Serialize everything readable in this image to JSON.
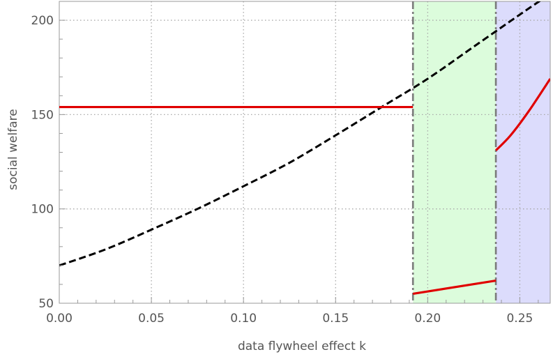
{
  "chart_data": {
    "type": "line",
    "title": "",
    "xlabel": "data flywheel effect k",
    "ylabel": "social welfare",
    "xlim": [
      0.0,
      0.2665
    ],
    "ylim": [
      50,
      210
    ],
    "x_ticks": [
      0.0,
      0.05,
      0.1,
      0.15,
      0.2,
      0.25
    ],
    "x_tick_labels": [
      "0.00",
      "0.05",
      "0.10",
      "0.15",
      "0.20",
      "0.25"
    ],
    "y_ticks": [
      50,
      100,
      150,
      200
    ],
    "y_tick_labels": [
      "50",
      "100",
      "150",
      "200"
    ],
    "grid": true,
    "regions": [
      {
        "from": 0.192,
        "to": 0.237,
        "color": "#dcfcdc"
      },
      {
        "from": 0.237,
        "to": 0.2665,
        "color": "#dcdcfc"
      }
    ],
    "region_boundaries": [
      0.192,
      0.237
    ],
    "series": [
      {
        "line_style": "dashed",
        "color": "#000000",
        "x": [
          0.0,
          0.025,
          0.05,
          0.075,
          0.1,
          0.125,
          0.15,
          0.175,
          0.2,
          0.225,
          0.25,
          0.265
        ],
        "y": [
          70,
          78.5,
          89,
          100,
          112,
          124.5,
          139,
          154,
          169,
          186,
          203,
          213
        ]
      },
      {
        "line_style": "solid",
        "color": "#e00000",
        "x": [
          0.0,
          0.192
        ],
        "y": [
          154,
          154
        ]
      },
      {
        "line_style": "solid",
        "color": "#e00000",
        "x": [
          0.192,
          0.237
        ],
        "y": [
          55,
          62
        ]
      },
      {
        "line_style": "solid",
        "color": "#e00000",
        "x": [
          0.237,
          0.245,
          0.255,
          0.2665
        ],
        "y": [
          131,
          139,
          152,
          169
        ]
      }
    ]
  }
}
